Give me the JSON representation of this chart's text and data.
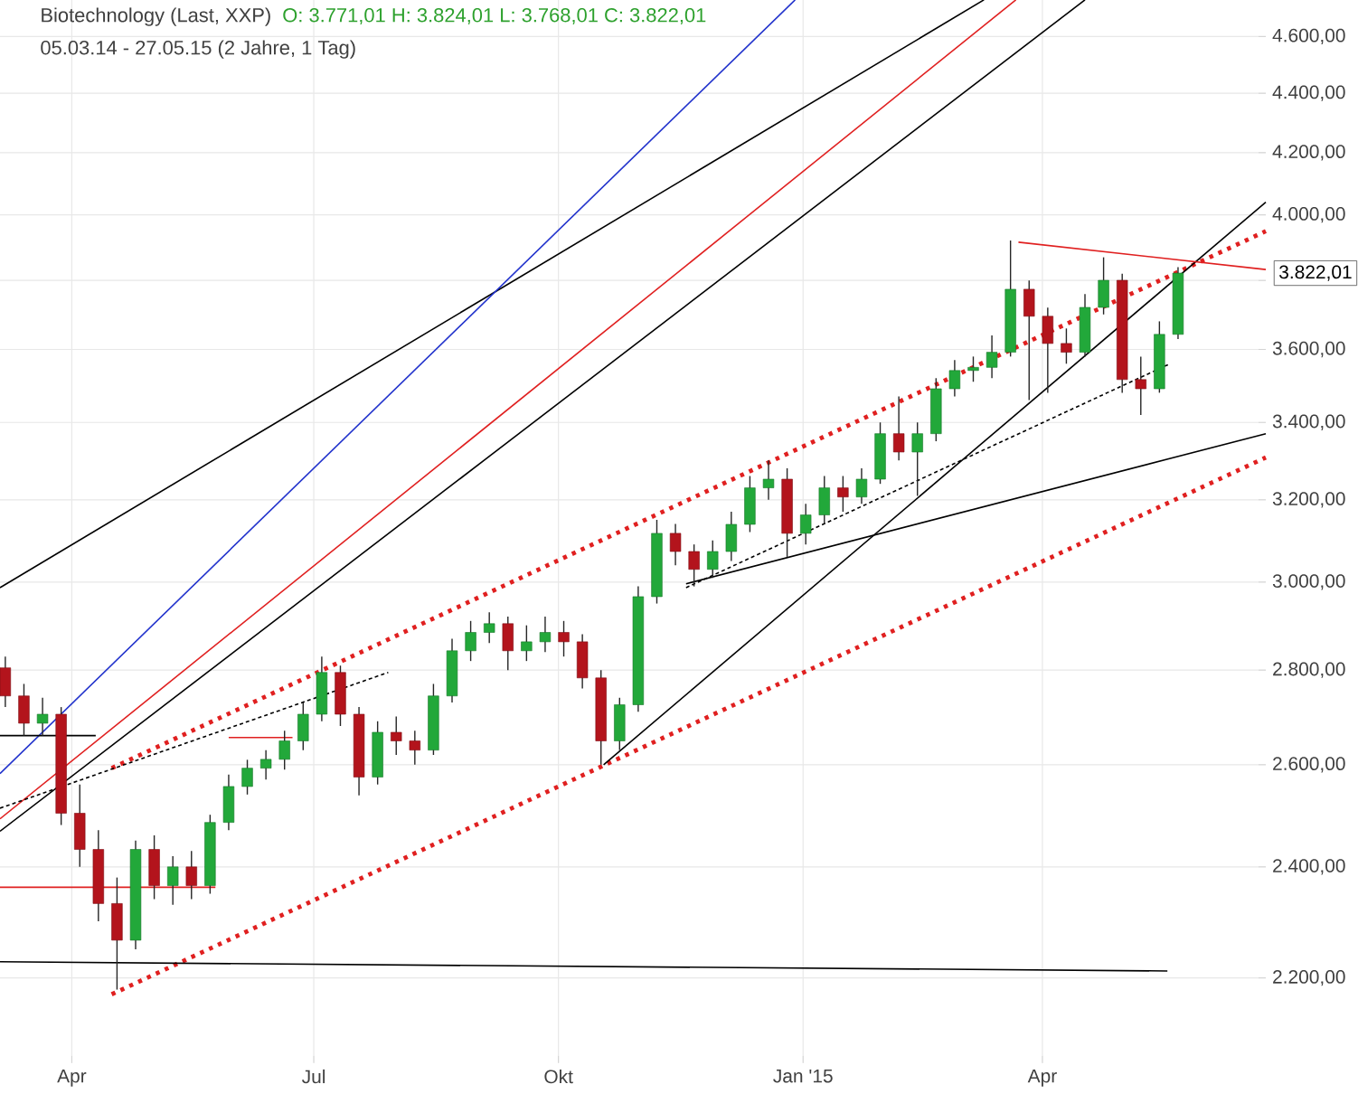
{
  "chart_data": {
    "type": "candlestick",
    "title": "Biotechnology (Last, XXP)",
    "subtitle": "05.03.14 - 27.05.15 (2 Jahre, 1 Tag)",
    "annotations": [
      "O: 3.771,01  H: 3.824,01  L: 3.768,01  C: 3.822,01",
      "3.822,01"
    ],
    "log": true,
    "grid": true,
    "xlim": [
      "2014-03-05",
      "2015-06-24"
    ],
    "xticks": [
      {
        "value": "2014-04-01",
        "label": "Apr"
      },
      {
        "value": "2014-07-01",
        "label": "Jul"
      },
      {
        "value": "2014-10-01",
        "label": "Okt"
      },
      {
        "value": "2015-01-01",
        "label": "Jan '15"
      },
      {
        "value": "2015-04-01",
        "label": "Apr"
      }
    ],
    "ylim": [
      2058,
      4734
    ],
    "yticks": [
      {
        "value": 2200,
        "label": "2.200,00"
      },
      {
        "value": 2400,
        "label": "2.400,00"
      },
      {
        "value": 2600,
        "label": "2.600,00"
      },
      {
        "value": 2800,
        "label": "2.800,00"
      },
      {
        "value": 3000,
        "label": "3.000,00"
      },
      {
        "value": 3200,
        "label": "3.200,00"
      },
      {
        "value": 3400,
        "label": "3.400,00"
      },
      {
        "value": 3600,
        "label": "3.600,00"
      },
      {
        "value": 3800,
        "label": null
      },
      {
        "value": 4000,
        "label": "4.000,00"
      },
      {
        "value": 4200,
        "label": "4.200,00"
      },
      {
        "value": 4400,
        "label": "4.400,00"
      },
      {
        "value": 4600,
        "label": "4.600,00"
      }
    ],
    "x": [
      "2014-03-07",
      "2014-03-14",
      "2014-03-21",
      "2014-03-28",
      "2014-04-04",
      "2014-04-11",
      "2014-04-18",
      "2014-04-25",
      "2014-05-02",
      "2014-05-09",
      "2014-05-16",
      "2014-05-23",
      "2014-05-30",
      "2014-06-06",
      "2014-06-13",
      "2014-06-20",
      "2014-06-27",
      "2014-07-04",
      "2014-07-11",
      "2014-07-18",
      "2014-07-25",
      "2014-08-01",
      "2014-08-08",
      "2014-08-15",
      "2014-08-22",
      "2014-08-29",
      "2014-09-05",
      "2014-09-12",
      "2014-09-19",
      "2014-09-26",
      "2014-10-03",
      "2014-10-10",
      "2014-10-17",
      "2014-10-24",
      "2014-10-31",
      "2014-11-07",
      "2014-11-14",
      "2014-11-21",
      "2014-11-28",
      "2014-12-05",
      "2014-12-12",
      "2014-12-19",
      "2014-12-26",
      "2015-01-02",
      "2015-01-09",
      "2015-01-16",
      "2015-01-23",
      "2015-01-30",
      "2015-02-06",
      "2015-02-13",
      "2015-02-20",
      "2015-02-27",
      "2015-03-06",
      "2015-03-13",
      "2015-03-20",
      "2015-03-27",
      "2015-04-03",
      "2015-04-10",
      "2015-04-17",
      "2015-04-24",
      "2015-05-01",
      "2015-05-08",
      "2015-05-15",
      "2015-05-22"
    ],
    "ohlc": [
      [
        2805,
        2830,
        2720,
        2744
      ],
      [
        2744,
        2770,
        2660,
        2686
      ],
      [
        2686,
        2740,
        2660,
        2705
      ],
      [
        2705,
        2720,
        2480,
        2503
      ],
      [
        2503,
        2560,
        2400,
        2433
      ],
      [
        2433,
        2470,
        2300,
        2332
      ],
      [
        2332,
        2380,
        2180,
        2266
      ],
      [
        2266,
        2450,
        2250,
        2433
      ],
      [
        2433,
        2460,
        2340,
        2365
      ],
      [
        2365,
        2420,
        2330,
        2400
      ],
      [
        2400,
        2430,
        2340,
        2365
      ],
      [
        2365,
        2500,
        2350,
        2485
      ],
      [
        2485,
        2580,
        2470,
        2556
      ],
      [
        2556,
        2610,
        2540,
        2593
      ],
      [
        2593,
        2630,
        2570,
        2611
      ],
      [
        2611,
        2670,
        2590,
        2649
      ],
      [
        2649,
        2730,
        2630,
        2705
      ],
      [
        2705,
        2830,
        2690,
        2795
      ],
      [
        2795,
        2810,
        2680,
        2705
      ],
      [
        2705,
        2720,
        2538,
        2575
      ],
      [
        2575,
        2690,
        2560,
        2667
      ],
      [
        2667,
        2700,
        2620,
        2649
      ],
      [
        2649,
        2670,
        2600,
        2630
      ],
      [
        2630,
        2770,
        2620,
        2744
      ],
      [
        2744,
        2870,
        2730,
        2843
      ],
      [
        2843,
        2910,
        2820,
        2884
      ],
      [
        2884,
        2930,
        2860,
        2904
      ],
      [
        2904,
        2920,
        2800,
        2843
      ],
      [
        2843,
        2900,
        2820,
        2863
      ],
      [
        2863,
        2920,
        2840,
        2884
      ],
      [
        2884,
        2910,
        2830,
        2863
      ],
      [
        2863,
        2880,
        2760,
        2783
      ],
      [
        2783,
        2800,
        2600,
        2649
      ],
      [
        2649,
        2740,
        2630,
        2725
      ],
      [
        2725,
        2990,
        2710,
        2966
      ],
      [
        2966,
        3150,
        2950,
        3117
      ],
      [
        3117,
        3140,
        3040,
        3073
      ],
      [
        3073,
        3090,
        2990,
        3030
      ],
      [
        3030,
        3100,
        3010,
        3073
      ],
      [
        3073,
        3170,
        3050,
        3139
      ],
      [
        3139,
        3260,
        3120,
        3230
      ],
      [
        3230,
        3300,
        3200,
        3252
      ],
      [
        3252,
        3280,
        3060,
        3117
      ],
      [
        3117,
        3190,
        3090,
        3162
      ],
      [
        3162,
        3260,
        3140,
        3230
      ],
      [
        3230,
        3260,
        3170,
        3207
      ],
      [
        3207,
        3280,
        3190,
        3252
      ],
      [
        3252,
        3400,
        3240,
        3370
      ],
      [
        3370,
        3470,
        3300,
        3322
      ],
      [
        3322,
        3400,
        3210,
        3370
      ],
      [
        3370,
        3520,
        3350,
        3491
      ],
      [
        3491,
        3570,
        3470,
        3541
      ],
      [
        3541,
        3580,
        3510,
        3550
      ],
      [
        3550,
        3640,
        3520,
        3592
      ],
      [
        3592,
        3921,
        3580,
        3774
      ],
      [
        3774,
        3800,
        3460,
        3695
      ],
      [
        3695,
        3720,
        3480,
        3617
      ],
      [
        3617,
        3660,
        3560,
        3592
      ],
      [
        3592,
        3760,
        3580,
        3721
      ],
      [
        3721,
        3870,
        3700,
        3801
      ],
      [
        3801,
        3820,
        3480,
        3516
      ],
      [
        3516,
        3580,
        3420,
        3491
      ],
      [
        3491,
        3680,
        3480,
        3643
      ],
      [
        3643,
        3840,
        3630,
        3822
      ]
    ],
    "colors": [
      "#b3141c",
      "#b3141c",
      "#22a83a",
      "#b3141c",
      "#b3141c",
      "#b3141c",
      "#b3141c",
      "#22a83a",
      "#b3141c",
      "#22a83a",
      "#b3141c",
      "#22a83a",
      "#22a83a",
      "#22a83a",
      "#22a83a",
      "#22a83a",
      "#22a83a",
      "#22a83a",
      "#b3141c",
      "#b3141c",
      "#22a83a",
      "#b3141c",
      "#b3141c",
      "#22a83a",
      "#22a83a",
      "#22a83a",
      "#22a83a",
      "#b3141c",
      "#22a83a",
      "#22a83a",
      "#b3141c",
      "#b3141c",
      "#b3141c",
      "#22a83a",
      "#22a83a",
      "#22a83a",
      "#b3141c",
      "#b3141c",
      "#22a83a",
      "#22a83a",
      "#22a83a",
      "#22a83a",
      "#b3141c",
      "#22a83a",
      "#22a83a",
      "#b3141c",
      "#22a83a",
      "#22a83a",
      "#b3141c",
      "#22a83a",
      "#22a83a",
      "#22a83a",
      "#22a83a",
      "#22a83a",
      "#22a83a",
      "#b3141c",
      "#b3141c",
      "#b3141c",
      "#22a83a",
      "#22a83a",
      "#b3141c",
      "#b3141c",
      "#22a83a",
      "#22a83a"
    ],
    "series": [
      {
        "type": "line",
        "color": "#000000",
        "line_style": "solid",
        "x": [
          "2014-03-05",
          "2015-03-10"
        ],
        "values": [
          2987,
          4734
        ]
      },
      {
        "type": "line",
        "color": "#000000",
        "line_style": "solid",
        "x": [
          "2014-03-05",
          "2015-04-17"
        ],
        "values": [
          2468,
          4734
        ]
      },
      {
        "type": "line",
        "color": "#2233cc",
        "line_style": "solid",
        "x": [
          "2014-03-05",
          "2014-12-29"
        ],
        "values": [
          2582,
          4734
        ]
      },
      {
        "type": "line",
        "color": "#e02020",
        "line_style": "solid",
        "x": [
          "2014-03-05",
          "2015-03-22"
        ],
        "values": [
          2492,
          4734
        ]
      },
      {
        "type": "line",
        "color": "#e02020",
        "line_style": "dotted",
        "x": [
          "2014-04-16",
          "2015-06-24"
        ],
        "values": [
          2593,
          3950
        ]
      },
      {
        "type": "line",
        "color": "#e02020",
        "line_style": "dotted",
        "x": [
          "2014-04-16",
          "2015-06-24"
        ],
        "values": [
          2172,
          3308
        ]
      },
      {
        "type": "line",
        "color": "#000000",
        "line_style": "solid",
        "x": [
          "2014-10-18",
          "2015-06-24"
        ],
        "values": [
          2600,
          4040
        ]
      },
      {
        "type": "line",
        "color": "#000000",
        "line_style": "solid",
        "x": [
          "2014-11-18",
          "2015-06-24"
        ],
        "values": [
          2996,
          3370
        ]
      },
      {
        "type": "line",
        "color": "#000000",
        "line_style": "dashed",
        "x": [
          "2014-11-18",
          "2015-05-19"
        ],
        "values": [
          2987,
          3560
        ]
      },
      {
        "type": "line",
        "color": "#000000",
        "line_style": "dashed",
        "x": [
          "2014-03-05",
          "2014-07-29"
        ],
        "values": [
          2513,
          2795
        ]
      },
      {
        "type": "line",
        "color": "#e02020",
        "line_style": "solid",
        "x": [
          "2015-03-23",
          "2015-06-24"
        ],
        "values": [
          3916,
          3833
        ]
      },
      {
        "type": "line",
        "color": "#000000",
        "line_style": "solid",
        "x": [
          "2014-03-05",
          "2015-05-18"
        ],
        "values": [
          2228,
          2212
        ]
      },
      {
        "type": "line",
        "color": "#e02020",
        "line_style": "solid",
        "x": [
          "2014-03-05",
          "2014-05-25"
        ],
        "values": [
          2362,
          2362
        ]
      },
      {
        "type": "line",
        "color": "#e02020",
        "line_style": "solid",
        "x": [
          "2014-05-30",
          "2014-06-23"
        ],
        "values": [
          2656,
          2656
        ]
      },
      {
        "type": "line",
        "color": "#000000",
        "line_style": "solid",
        "x": [
          "2014-03-05",
          "2014-04-10"
        ],
        "values": [
          2660,
          2660
        ]
      }
    ]
  }
}
